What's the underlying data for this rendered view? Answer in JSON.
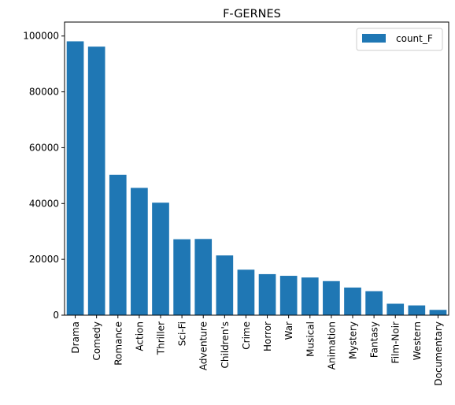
{
  "chart_data": {
    "type": "bar",
    "title": "F-GERNES",
    "xlabel": "",
    "ylabel": "",
    "categories": [
      "Drama",
      "Comedy",
      "Romance",
      "Action",
      "Thriller",
      "Sci-Fi",
      "Adventure",
      "Children's",
      "Crime",
      "Horror",
      "War",
      "Musical",
      "Animation",
      "Mystery",
      "Fantasy",
      "Film-Noir",
      "Western",
      "Documentary"
    ],
    "series": [
      {
        "name": "count_F",
        "color": "#1f77b4",
        "values": [
          98100,
          96200,
          50300,
          45600,
          40300,
          27200,
          27300,
          21400,
          16300,
          14700,
          14100,
          13500,
          12200,
          9900,
          8600,
          4100,
          3500,
          1900
        ]
      }
    ],
    "ylim": [
      0,
      105000
    ],
    "yticks": [
      0,
      20000,
      40000,
      60000,
      80000,
      100000
    ],
    "ytick_labels": [
      "0",
      "20000",
      "40000",
      "60000",
      "80000",
      "100000"
    ],
    "grid": false,
    "legend_position": "top-right"
  }
}
